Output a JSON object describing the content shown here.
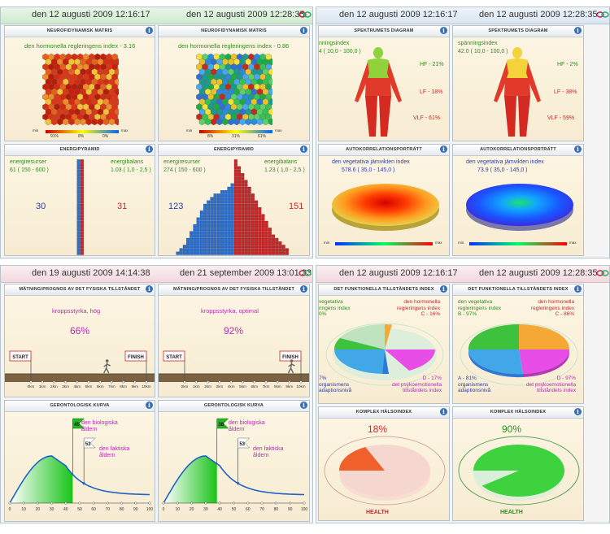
{
  "q1": {
    "date_left": "den 12 augusti 2009 12:16:17",
    "date_right": "den 12 augusti 2009 12:28:35",
    "matrix_title": "NEUROFIDYNAMISK MATRIS",
    "matrix_left": {
      "index": "den hormonella regleringens index - 3.16",
      "legend": [
        "91%",
        "8%",
        "0%"
      ],
      "min": "min",
      "max": "max"
    },
    "matrix_right": {
      "index": "den hormonella regleringens index - 0.86",
      "legend": [
        "8%",
        "31%",
        "61%"
      ],
      "min": "min",
      "max": "max"
    },
    "pyramid_title": "ENERGIPYRAMID",
    "pyr_left": {
      "res_label": "energiresurser",
      "res_value": "61 ( 150 - 600 )",
      "bal_label": "energibalans",
      "bal_value": "1.03 ( 1,0 - 2,5 )",
      "left_count": "30",
      "right_count": "31"
    },
    "pyr_right": {
      "res_label": "energiresurser",
      "res_value": "274 ( 150 - 600 )",
      "bal_label": "energibalans",
      "bal_value": "1.23 ( 1,0 - 2,5 )",
      "left_count": "123",
      "right_count": "151"
    }
  },
  "q2": {
    "date_left": "den 12 augusti 2009 12:16:17",
    "date_right": "den 12 augusti 2009 12:28:35",
    "spec_title": "SPEKTRUMETS DIAGRAM",
    "spec_left": {
      "index": "nningsindex",
      "index_value": "4 ( 10,0 - 100,0 )",
      "hf": "HF - 21%",
      "lf": "LF - 18%",
      "vlf": "VLF - 61%"
    },
    "spec_right": {
      "index": "spänningsindex",
      "index_value": "42.0 ( 10,0 - 100,0 )",
      "hf": "HF - 2%",
      "lf": "LF - 38%",
      "vlf": "VLF - 59%"
    },
    "auto_title": "AUTOKORRELATIONSPORTRÄTT",
    "auto_left": {
      "index": "den vegetativa jämvikten index",
      "index_value": "578.6 ( 35,0 - 145,0 )",
      "min": "min",
      "max": "max"
    },
    "auto_right": {
      "index": "den vegetativa jämvikten index",
      "index_value": "73.9 ( 35,0 - 145,0 )",
      "min": "min",
      "max": "max"
    }
  },
  "q3": {
    "date_left": "den 19 augusti 2009 14:14:38",
    "date_right": "den 21 september 2009 13:01:33",
    "prog_title": "MÄTNING/PROGNOS AV DET FYSISKA TILLSTÅNDET",
    "prog_left": {
      "label": "kroppsstyrka, hög",
      "percent": "66%",
      "progress": 0.66
    },
    "prog_right": {
      "label": "kroppsstyrka, optimal",
      "percent": "92%",
      "progress": 0.92
    },
    "start": "START",
    "finish": "FINISH",
    "track_ticks": [
      "0km",
      "1km",
      "2km",
      "3km",
      "4km",
      "5km",
      "6km",
      "7km",
      "8km",
      "9km",
      "10km"
    ],
    "geron_title": "GERONTOLOGISK KURVA",
    "geron_left": {
      "bio_value": "45",
      "bio_label1": "den biologiska",
      "bio_label2": "åldern",
      "act_value": "53",
      "act_label1": "den faktiska",
      "act_label2": "åldern"
    },
    "geron_right": {
      "bio_value": "38",
      "bio_label1": "den biologiska",
      "bio_label2": "åldern",
      "act_value": "53",
      "act_label1": "den faktiska",
      "act_label2": "åldern"
    },
    "age_ticks": [
      "0",
      "10",
      "20",
      "30",
      "40",
      "50",
      "60",
      "70",
      "80",
      "90",
      "100"
    ]
  },
  "q4": {
    "date_left": "den 12 augusti 2009 12:16:17",
    "date_right": "den 12 augusti 2009 12:28:35",
    "func_title": "DET FUNKTIONELLA TILLSTÅNDETS INDEX",
    "func_left": {
      "veg1": "vegetativa",
      "veg2": "ringens index",
      "veg3": "0%",
      "horm1": "den hormonella",
      "horm2": "regleringens index",
      "horm3": "C - 16%",
      "org1": "7%",
      "org2": "organismens",
      "org3": "adaptionsnivå",
      "psy1": "D - 17%",
      "psy2": "det psykoemotionella",
      "psy3": "tillståndets index"
    },
    "func_right": {
      "veg1": "den vegetativa",
      "veg2": "regleringens index",
      "veg3": "B - 97%",
      "horm1": "den hormonella",
      "horm2": "regleringens index",
      "horm3": "C - 86%",
      "org1": "A - 81%",
      "org2": "organismens",
      "org3": "adaptionsnivå",
      "psy1": "D - 97%",
      "psy2": "det psykoemotionella",
      "psy3": "tillståndets index"
    },
    "health_title": "KOMPLEX HÄLSOINDEX",
    "health_left": {
      "percent": "18%",
      "label": "HEALTH",
      "value": 0.18
    },
    "health_right": {
      "percent": "90%",
      "label": "HEALTH",
      "value": 0.9
    }
  },
  "colors": {
    "green": "#2f8d1f",
    "red": "#c52a2a",
    "blue": "#2d3ea8",
    "purple": "#b42ab4"
  }
}
